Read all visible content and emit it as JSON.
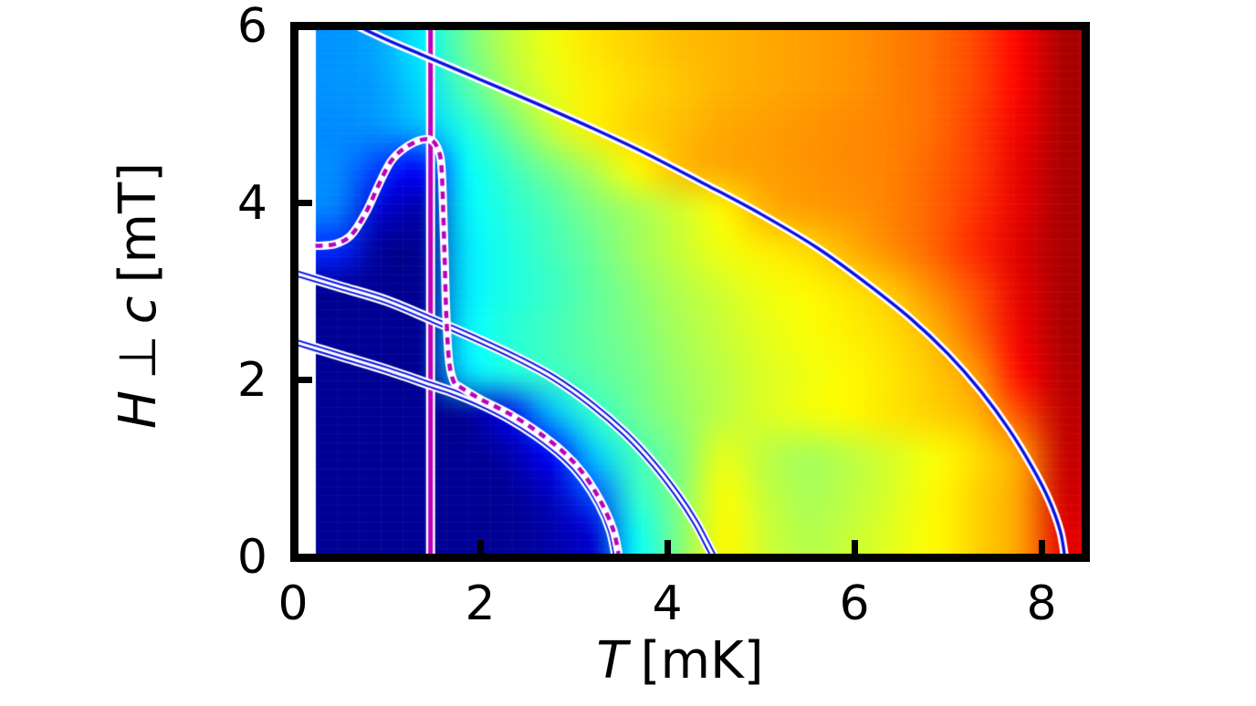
{
  "figure": {
    "x_tick_labels": [
      "0",
      "2",
      "4",
      "6",
      "8"
    ],
    "y_tick_labels": [
      "0",
      "2",
      "4",
      "6"
    ],
    "xlabel_var": "T",
    "xlabel_unit": "[mK]",
    "ylabel_H": "H",
    "ylabel_perp": "⊥",
    "ylabel_c": "c",
    "ylabel_unit": "[mT]"
  },
  "chart_data": {
    "type": "heatmap",
    "title": "",
    "xlabel": "T [mK]",
    "ylabel": "H ⊥ c [mT]",
    "x_range": [
      0,
      8.5
    ],
    "y_range": [
      0,
      6
    ],
    "x_ticks": [
      2,
      4,
      6,
      8
    ],
    "y_ticks": [
      2,
      4
    ],
    "grid_on": false,
    "legend": null,
    "colormap": "jet",
    "colors": {
      "boundary_blue": "#0a12e6",
      "magenta": "#bb00bb",
      "outline_white": "#ffffff",
      "axis_black": "#000000"
    },
    "heat_grid": {
      "t_min": 0.24,
      "t_max": 8.47,
      "h_min": 0.0,
      "h_max": 6.0,
      "rows_h_top_to_bottom": [
        6.0,
        5.5,
        5.0,
        4.5,
        4.0,
        3.5,
        3.0,
        2.5,
        2.0,
        1.5,
        1.0,
        0.5,
        0.0
      ],
      "cols_t": [
        0.45,
        0.91,
        1.37,
        1.83,
        2.29,
        2.75,
        3.21,
        3.67,
        4.13,
        4.59,
        5.05,
        5.51,
        5.97,
        6.43,
        6.89,
        7.35,
        7.81,
        8.27
      ],
      "values": [
        [
          0.27,
          0.29,
          0.36,
          0.48,
          0.56,
          0.61,
          0.65,
          0.67,
          0.69,
          0.7,
          0.71,
          0.72,
          0.73,
          0.75,
          0.77,
          0.81,
          0.88,
          0.96
        ],
        [
          0.27,
          0.28,
          0.34,
          0.45,
          0.54,
          0.6,
          0.64,
          0.66,
          0.68,
          0.7,
          0.71,
          0.72,
          0.73,
          0.75,
          0.77,
          0.81,
          0.88,
          0.96
        ],
        [
          0.26,
          0.27,
          0.31,
          0.4,
          0.48,
          0.57,
          0.64,
          0.67,
          0.69,
          0.71,
          0.72,
          0.73,
          0.74,
          0.75,
          0.77,
          0.82,
          0.89,
          0.96
        ],
        [
          0.26,
          0.18,
          0.12,
          0.37,
          0.43,
          0.49,
          0.55,
          0.63,
          0.69,
          0.71,
          0.72,
          0.73,
          0.74,
          0.75,
          0.78,
          0.82,
          0.9,
          0.96
        ],
        [
          0.25,
          0.08,
          0.04,
          0.36,
          0.41,
          0.45,
          0.5,
          0.54,
          0.58,
          0.63,
          0.7,
          0.72,
          0.73,
          0.75,
          0.78,
          0.83,
          0.9,
          0.96
        ],
        [
          0.16,
          0.02,
          0.02,
          0.35,
          0.4,
          0.44,
          0.48,
          0.53,
          0.57,
          0.61,
          0.64,
          0.66,
          0.7,
          0.74,
          0.78,
          0.84,
          0.91,
          0.96
        ],
        [
          0.02,
          0.02,
          0.02,
          0.35,
          0.4,
          0.43,
          0.47,
          0.51,
          0.55,
          0.58,
          0.61,
          0.63,
          0.65,
          0.68,
          0.74,
          0.8,
          0.9,
          0.96
        ],
        [
          0.02,
          0.02,
          0.02,
          0.36,
          0.41,
          0.44,
          0.47,
          0.5,
          0.54,
          0.57,
          0.6,
          0.62,
          0.64,
          0.66,
          0.7,
          0.78,
          0.89,
          0.96
        ],
        [
          0.02,
          0.02,
          0.02,
          0.34,
          0.4,
          0.43,
          0.46,
          0.49,
          0.53,
          0.56,
          0.59,
          0.61,
          0.63,
          0.65,
          0.68,
          0.73,
          0.87,
          0.95
        ],
        [
          0.02,
          0.02,
          0.02,
          0.02,
          0.1,
          0.3,
          0.42,
          0.48,
          0.52,
          0.56,
          0.59,
          0.61,
          0.63,
          0.65,
          0.67,
          0.7,
          0.8,
          0.94
        ],
        [
          0.02,
          0.02,
          0.02,
          0.02,
          0.04,
          0.12,
          0.32,
          0.44,
          0.5,
          0.6,
          0.56,
          0.54,
          0.56,
          0.59,
          0.62,
          0.66,
          0.72,
          0.93
        ],
        [
          0.02,
          0.02,
          0.02,
          0.02,
          0.02,
          0.06,
          0.2,
          0.42,
          0.5,
          0.62,
          0.57,
          0.54,
          0.56,
          0.59,
          0.63,
          0.67,
          0.72,
          0.92
        ],
        [
          0.02,
          0.02,
          0.02,
          0.02,
          0.02,
          0.04,
          0.08,
          0.38,
          0.5,
          0.63,
          0.58,
          0.55,
          0.57,
          0.6,
          0.63,
          0.67,
          0.72,
          0.9
        ]
      ]
    },
    "vertical_line": {
      "T": 1.47,
      "style": "solid-magenta-white-outline"
    },
    "curves": {
      "outer_boundary": {
        "style": "single-blue-white-outline",
        "points": [
          [
            0.6,
            6.05
          ],
          [
            1.0,
            5.85
          ],
          [
            1.4,
            5.67
          ],
          [
            2.0,
            5.4
          ],
          [
            2.6,
            5.13
          ],
          [
            3.2,
            4.85
          ],
          [
            3.8,
            4.55
          ],
          [
            4.4,
            4.22
          ],
          [
            5.0,
            3.88
          ],
          [
            5.6,
            3.5
          ],
          [
            6.1,
            3.12
          ],
          [
            6.6,
            2.7
          ],
          [
            7.0,
            2.3
          ],
          [
            7.35,
            1.88
          ],
          [
            7.65,
            1.45
          ],
          [
            7.9,
            1.02
          ],
          [
            8.08,
            0.65
          ],
          [
            8.2,
            0.3
          ],
          [
            8.25,
            0.0
          ]
        ]
      },
      "middle_boundary": {
        "style": "double-blue-white-outline",
        "points": [
          [
            0.0,
            3.22
          ],
          [
            0.5,
            3.06
          ],
          [
            1.0,
            2.9
          ],
          [
            1.5,
            2.68
          ],
          [
            2.0,
            2.45
          ],
          [
            2.4,
            2.25
          ],
          [
            2.8,
            2.02
          ],
          [
            3.2,
            1.72
          ],
          [
            3.55,
            1.4
          ],
          [
            3.85,
            1.06
          ],
          [
            4.1,
            0.72
          ],
          [
            4.3,
            0.4
          ],
          [
            4.45,
            0.1
          ],
          [
            4.5,
            0.0
          ]
        ]
      },
      "inner_boundary": {
        "style": "double-blue-white-outline",
        "points": [
          [
            0.0,
            2.44
          ],
          [
            0.5,
            2.28
          ],
          [
            1.0,
            2.12
          ],
          [
            1.5,
            1.94
          ],
          [
            1.7,
            1.87
          ],
          [
            2.0,
            1.74
          ],
          [
            2.3,
            1.58
          ],
          [
            2.6,
            1.38
          ],
          [
            2.9,
            1.13
          ],
          [
            3.1,
            0.9
          ],
          [
            3.28,
            0.6
          ],
          [
            3.4,
            0.3
          ],
          [
            3.46,
            0.0
          ]
        ]
      },
      "experimental_boundary": {
        "style": "magenta-dashed-white-outline",
        "points": [
          [
            0.24,
            3.52
          ],
          [
            0.45,
            3.54
          ],
          [
            0.62,
            3.64
          ],
          [
            0.78,
            3.9
          ],
          [
            0.92,
            4.22
          ],
          [
            1.05,
            4.48
          ],
          [
            1.2,
            4.63
          ],
          [
            1.38,
            4.72
          ],
          [
            1.5,
            4.7
          ],
          [
            1.57,
            4.55
          ],
          [
            1.59,
            4.35
          ],
          [
            1.6,
            4.1
          ],
          [
            1.62,
            3.4
          ],
          [
            1.64,
            2.7
          ],
          [
            1.67,
            2.2
          ],
          [
            1.72,
            1.98
          ],
          [
            1.78,
            1.93
          ],
          [
            2.0,
            1.79
          ],
          [
            2.3,
            1.63
          ],
          [
            2.6,
            1.43
          ],
          [
            2.9,
            1.18
          ],
          [
            3.1,
            0.95
          ],
          [
            3.28,
            0.65
          ],
          [
            3.42,
            0.32
          ],
          [
            3.48,
            0.04
          ]
        ]
      }
    }
  }
}
